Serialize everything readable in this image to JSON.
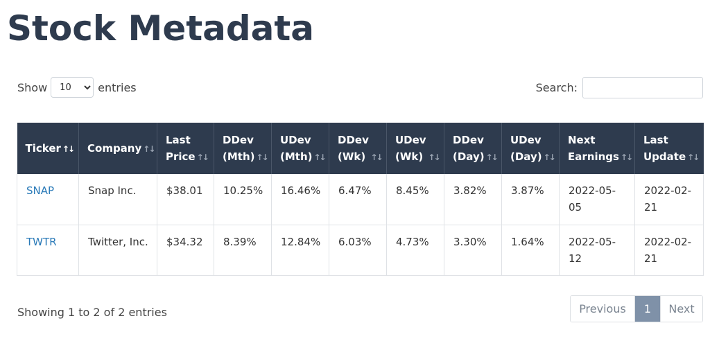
{
  "page": {
    "title": "Stock Metadata"
  },
  "length_control": {
    "show_label": "Show",
    "selected": "10",
    "entries_label": "entries"
  },
  "search": {
    "label": "Search:",
    "value": "",
    "placeholder": ""
  },
  "table": {
    "columns": [
      {
        "line1": "Ticker",
        "line2": "",
        "sort": "asc"
      },
      {
        "line1": "Company",
        "line2": "",
        "sort": "none"
      },
      {
        "line1": "Last",
        "line2": "Price",
        "sort": "none"
      },
      {
        "line1": "DDev",
        "line2": "(Mth)",
        "sort": "none"
      },
      {
        "line1": "UDev",
        "line2": "(Mth)",
        "sort": "none"
      },
      {
        "line1": "DDev",
        "line2": "(Wk)",
        "sort": "none"
      },
      {
        "line1": "UDev",
        "line2": "(Wk)",
        "sort": "none"
      },
      {
        "line1": "DDev",
        "line2": "(Day)",
        "sort": "none"
      },
      {
        "line1": "UDev",
        "line2": "(Day)",
        "sort": "none"
      },
      {
        "line1": "Next",
        "line2": "Earnings",
        "sort": "none"
      },
      {
        "line1": "Last",
        "line2": "Update",
        "sort": "none"
      }
    ],
    "rows": [
      {
        "ticker": "SNAP",
        "company": "Snap Inc.",
        "last_price": "$38.01",
        "ddev_mth": "10.25%",
        "udev_mth": "16.46%",
        "ddev_wk": "6.47%",
        "udev_wk": "8.45%",
        "ddev_day": "3.82%",
        "udev_day": "3.87%",
        "next_earnings_1": "2022-05-",
        "next_earnings_2": "05",
        "last_update_1": "2022-02-",
        "last_update_2": "21"
      },
      {
        "ticker": "TWTR",
        "company": "Twitter, Inc.",
        "last_price": "$34.32",
        "ddev_mth": "8.39%",
        "udev_mth": "12.84%",
        "ddev_wk": "6.03%",
        "udev_wk": "4.73%",
        "ddev_day": "3.30%",
        "udev_day": "1.64%",
        "next_earnings_1": "2022-05-",
        "next_earnings_2": "12",
        "last_update_1": "2022-02-",
        "last_update_2": "21"
      }
    ]
  },
  "info": "Showing 1 to 2 of 2 entries",
  "pagination": {
    "previous": "Previous",
    "current": "1",
    "next": "Next"
  },
  "icons": {
    "sort_unsorted": "sort-both-icon",
    "sort_ascending": "sort-asc-icon"
  },
  "colors": {
    "title": "#2e3b4e",
    "header_bg": "#2e3b4e",
    "link": "#2a7ab8",
    "page_active": "#7f91a8"
  }
}
